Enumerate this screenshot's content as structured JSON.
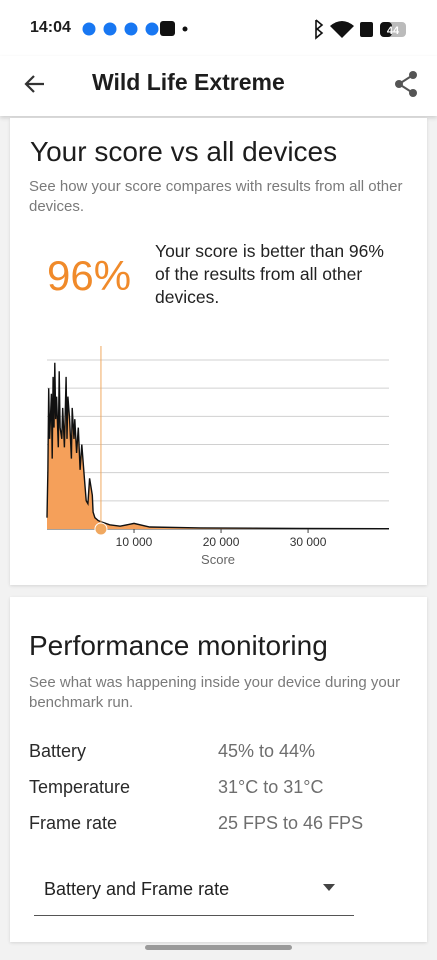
{
  "status_bar": {
    "time": "14:04",
    "battery": "44"
  },
  "app_bar": {
    "title": "Wild Life Extreme"
  },
  "score_card": {
    "title": "Your score vs all devices",
    "subtitle": "See how your score compares with results from all other devices.",
    "percentile": "96%",
    "description": "Your score is better than 96% of the results from all other devices."
  },
  "chart_data": {
    "type": "area",
    "x": [
      0,
      100,
      200,
      300,
      500,
      600,
      700,
      800,
      900,
      1000,
      1100,
      1300,
      1400,
      1500,
      1700,
      1800,
      2000,
      2200,
      2300,
      2400,
      2600,
      2800,
      2900,
      3100,
      3200,
      3400,
      3600,
      3800,
      4000,
      4300,
      4500,
      4700,
      4900,
      5200,
      5300,
      5500,
      5900,
      6300,
      7200,
      8400,
      10000,
      11800,
      17600,
      29100,
      39300
    ],
    "series": [
      {
        "color": "#f5a05a",
        "line_color": "#111111",
        "values": [
          0.4,
          2.1,
          5.0,
          3.2,
          4.8,
          2.5,
          5.4,
          3.6,
          5.9,
          3.9,
          4.7,
          2.9,
          5.6,
          3.6,
          3.2,
          4.3,
          2.9,
          5.4,
          3.2,
          4.7,
          3.9,
          2.5,
          4.3,
          3.2,
          3.9,
          2.7,
          3.6,
          2.1,
          3.0,
          1.8,
          1.0,
          0.9,
          1.8,
          1.2,
          0.6,
          0.4,
          0.3,
          0.25,
          0.15,
          0.1,
          0.2,
          0.07,
          0.04,
          0.02,
          0.01
        ]
      }
    ],
    "xlim": [
      0,
      39300
    ],
    "ylim": [
      0,
      6
    ],
    "xticks": [
      {
        "value": 10000,
        "label": "10 000"
      },
      {
        "value": 20000,
        "label": "20 000"
      },
      {
        "value": 30000,
        "label": "30 000"
      }
    ],
    "yticks": [
      0,
      1,
      2,
      3,
      4,
      5,
      6
    ],
    "grid": true,
    "xlabel": "Score",
    "marker_x": 6200,
    "marker_color": "#f0a860"
  },
  "performance": {
    "title": "Performance monitoring",
    "subtitle": "See what was happening inside your device during your benchmark run.",
    "rows": [
      [
        "Battery",
        "45% to 44%"
      ],
      [
        "Temperature",
        "31°C to 31°C"
      ],
      [
        "Frame rate",
        "25 FPS to 46 FPS"
      ]
    ],
    "dropdown": "Battery and Frame rate"
  }
}
